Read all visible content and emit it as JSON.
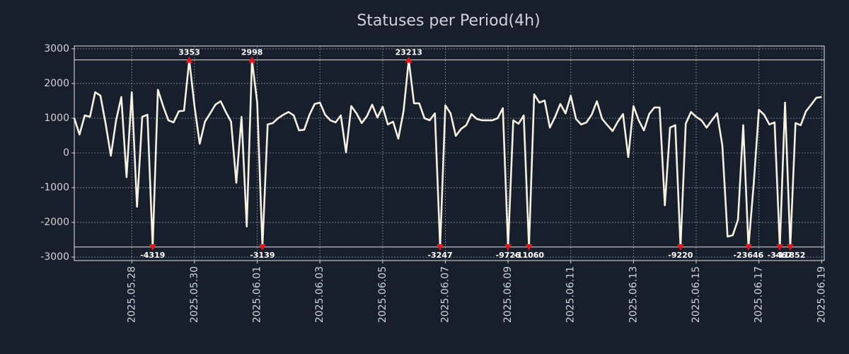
{
  "chart_data": {
    "type": "line",
    "title": "Statuses per Period(4h)",
    "categories": [
      null,
      null,
      null,
      null,
      null,
      null,
      null,
      null,
      null,
      null,
      null,
      "2025.05.28",
      null,
      null,
      null,
      null,
      null,
      null,
      null,
      null,
      null,
      null,
      null,
      "2025.05.30",
      null,
      null,
      null,
      null,
      null,
      null,
      null,
      null,
      null,
      null,
      null,
      "2025.06.01",
      null,
      null,
      null,
      null,
      null,
      null,
      null,
      null,
      null,
      null,
      null,
      "2025.06.03",
      null,
      null,
      null,
      null,
      null,
      null,
      null,
      null,
      null,
      null,
      null,
      "2025.06.05",
      null,
      null,
      null,
      null,
      null,
      null,
      null,
      null,
      null,
      null,
      null,
      "2025.06.07",
      null,
      null,
      null,
      null,
      null,
      null,
      null,
      null,
      null,
      null,
      null,
      "2025.06.09",
      null,
      null,
      null,
      null,
      null,
      null,
      null,
      null,
      null,
      null,
      null,
      "2025.06.11",
      null,
      null,
      null,
      null,
      null,
      null,
      null,
      null,
      null,
      null,
      null,
      "2025.06.13",
      null,
      null,
      null,
      null,
      null,
      null,
      null,
      null,
      null,
      null,
      null,
      "2025.06.15",
      null,
      null,
      null,
      null,
      null,
      null,
      null,
      null,
      null,
      null,
      null,
      "2025.06.17",
      null,
      null,
      null,
      null,
      null,
      null,
      null,
      null,
      null,
      null,
      null,
      "2025.06.19"
    ],
    "series": [
      {
        "color": "#f6f1e1",
        "values": [
          1000,
          530,
          1080,
          1040,
          1750,
          1650,
          840,
          -80,
          940,
          1610,
          -700,
          1750,
          -1550,
          1040,
          1100,
          -2710,
          1820,
          1350,
          940,
          880,
          1200,
          1220,
          2680,
          1350,
          265,
          900,
          1140,
          1390,
          1490,
          1180,
          900,
          -860,
          1040,
          -2120,
          2680,
          1450,
          -2710,
          820,
          860,
          1000,
          1100,
          1180,
          1080,
          650,
          670,
          1100,
          1410,
          1450,
          1100,
          940,
          880,
          1080,
          20,
          1350,
          1140,
          860,
          1060,
          1390,
          1020,
          1330,
          820,
          900,
          410,
          1200,
          2680,
          1430,
          1430,
          1000,
          940,
          1140,
          -2710,
          1370,
          1140,
          490,
          690,
          800,
          1120,
          980,
          940,
          940,
          940,
          1000,
          1290,
          -2710,
          940,
          840,
          1080,
          -2710,
          1690,
          1450,
          1510,
          730,
          1040,
          1410,
          1140,
          1650,
          980,
          820,
          880,
          1100,
          1490,
          980,
          800,
          630,
          900,
          1120,
          -120,
          1350,
          940,
          650,
          1120,
          1310,
          1310,
          -1510,
          730,
          800,
          -2710,
          840,
          1180,
          1040,
          940,
          730,
          940,
          1140,
          220,
          -2410,
          -2370,
          -1920,
          800,
          -2710,
          -900,
          1240,
          1100,
          820,
          880,
          -2710,
          1450,
          -2710,
          860,
          800,
          1200,
          1390,
          1590,
          1610
        ]
      }
    ],
    "outlier_values": [
      null,
      null,
      null,
      null,
      null,
      null,
      null,
      null,
      null,
      null,
      null,
      null,
      null,
      null,
      null,
      -4319,
      null,
      null,
      null,
      null,
      null,
      null,
      3353,
      null,
      null,
      null,
      null,
      null,
      null,
      null,
      null,
      null,
      null,
      null,
      2998,
      null,
      -3139,
      null,
      null,
      null,
      null,
      null,
      null,
      null,
      null,
      null,
      null,
      null,
      null,
      null,
      null,
      null,
      null,
      null,
      null,
      null,
      null,
      null,
      null,
      null,
      null,
      null,
      null,
      null,
      23213,
      null,
      null,
      null,
      null,
      null,
      -3247,
      null,
      null,
      null,
      null,
      null,
      null,
      null,
      null,
      null,
      null,
      null,
      null,
      -9726,
      null,
      null,
      null,
      -11060,
      null,
      null,
      null,
      null,
      null,
      null,
      null,
      null,
      null,
      null,
      null,
      null,
      null,
      null,
      null,
      null,
      null,
      null,
      null,
      null,
      null,
      null,
      null,
      null,
      null,
      null,
      null,
      null,
      -9220,
      null,
      null,
      null,
      null,
      null,
      null,
      null,
      null,
      null,
      null,
      null,
      null,
      -23646,
      null,
      null,
      null,
      null,
      null,
      -3467,
      null,
      -11852,
      null,
      null,
      null,
      null,
      null,
      null
    ],
    "outlier_color": "#e8141c",
    "clip_lines": [
      2680,
      -2710
    ],
    "ylim": [
      -3100,
      3080
    ],
    "yticks": [
      -3000,
      -2000,
      -1000,
      0,
      1000,
      2000,
      3000
    ],
    "grid": true
  }
}
